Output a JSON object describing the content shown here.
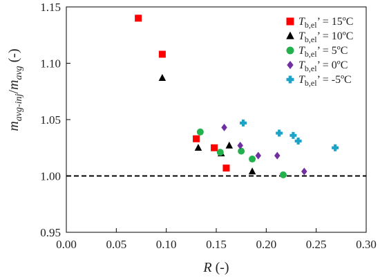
{
  "chart_data": {
    "type": "scatter",
    "xlabel": {
      "var": "R",
      "unit": " (-)"
    },
    "ylabel": {
      "num": "m",
      "num_sub": "avg-inj",
      "den": "m",
      "den_sub": "avg",
      "unit": " (-)"
    },
    "xlim": [
      0.0,
      0.3
    ],
    "ylim": [
      0.95,
      1.15
    ],
    "x_ticks": [
      "0.00",
      "0.05",
      "0.10",
      "0.15",
      "0.20",
      "0.25",
      "0.30"
    ],
    "y_ticks": [
      "0.95",
      "1.00",
      "1.05",
      "1.10",
      "1.15"
    ],
    "grid": false,
    "legend_position": "top-right",
    "reference_line": {
      "y": 1.0,
      "style": "dashed"
    },
    "series": [
      {
        "name": "15ºC",
        "label_var": "T",
        "label_sub": "b,el",
        "marker": "square",
        "color": "#ff0000",
        "x": [
          0.072,
          0.096,
          0.13,
          0.148,
          0.16
        ],
        "y": [
          1.14,
          1.108,
          1.033,
          1.025,
          1.007
        ]
      },
      {
        "name": "10ºC",
        "label_var": "T",
        "label_sub": "b,el",
        "marker": "triangle",
        "color": "#000000",
        "x": [
          0.096,
          0.132,
          0.155,
          0.163,
          0.186
        ],
        "y": [
          1.087,
          1.025,
          1.02,
          1.027,
          1.004
        ]
      },
      {
        "name": "5ºC",
        "label_var": "T",
        "label_sub": "b,el",
        "marker": "circle",
        "color": "#22b14c",
        "x": [
          0.134,
          0.154,
          0.175,
          0.186,
          0.217
        ],
        "y": [
          1.039,
          1.021,
          1.022,
          1.015,
          1.001
        ]
      },
      {
        "name": "0ºC",
        "label_var": "T",
        "label_sub": "b,el",
        "marker": "diamond",
        "color": "#7030a0",
        "x": [
          0.158,
          0.174,
          0.192,
          0.211,
          0.238
        ],
        "y": [
          1.043,
          1.027,
          1.018,
          1.018,
          1.004
        ]
      },
      {
        "name": "-5ºC",
        "label_var": "T",
        "label_sub": "b,el",
        "marker": "plus",
        "color": "#1ea3c8",
        "x": [
          0.177,
          0.213,
          0.227,
          0.232,
          0.269
        ],
        "y": [
          1.047,
          1.038,
          1.036,
          1.031,
          1.025
        ]
      }
    ]
  }
}
